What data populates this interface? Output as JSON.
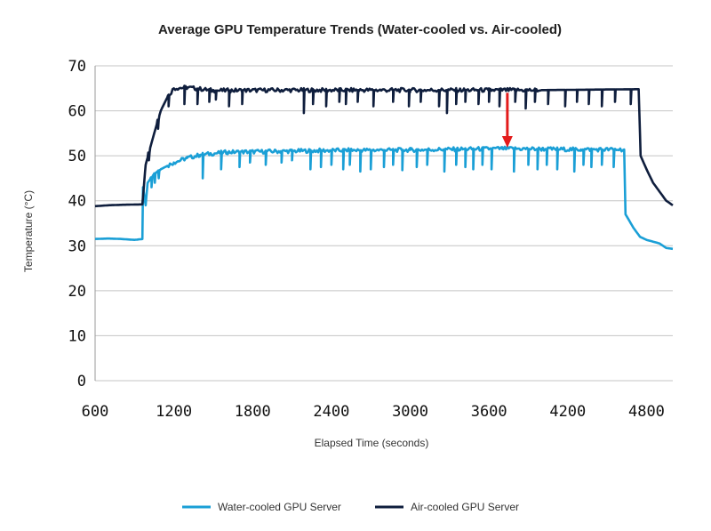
{
  "chart_data": {
    "type": "line",
    "title": "Average GPU Temperature Trends (Water-cooled vs. Air-cooled)",
    "xlabel": "Elapsed Time (seconds)",
    "ylabel": "Temperature (°C)",
    "xlim": [
      600,
      5000
    ],
    "ylim": [
      0,
      70
    ],
    "x_ticks": [
      600,
      1200,
      1800,
      2400,
      3000,
      3600,
      4200,
      4800
    ],
    "y_ticks": [
      0,
      10,
      20,
      30,
      40,
      50,
      60,
      70
    ],
    "grid": true,
    "legend_position": "bottom",
    "annotation": {
      "type": "arrow",
      "color": "#e31b1b",
      "x": 3740,
      "y_from": 64,
      "y_to": 52
    },
    "series": [
      {
        "name": "Water-cooled GPU Server",
        "color": "#1a9fd6",
        "baseline": [
          [
            600,
            31.5
          ],
          [
            700,
            31.6
          ],
          [
            800,
            31.5
          ],
          [
            900,
            31.3
          ],
          [
            960,
            31.5
          ],
          [
            965,
            43
          ],
          [
            985,
            39
          ],
          [
            1000,
            44
          ],
          [
            1050,
            46
          ],
          [
            1100,
            47
          ],
          [
            1200,
            48.5
          ],
          [
            1300,
            49.5
          ],
          [
            1400,
            50.2
          ],
          [
            1600,
            50.8
          ],
          [
            2000,
            51
          ],
          [
            2400,
            51.2
          ],
          [
            3000,
            51.3
          ],
          [
            3700,
            51.6
          ],
          [
            4000,
            51.5
          ],
          [
            4300,
            51.4
          ],
          [
            4630,
            51.4
          ],
          [
            4640,
            37
          ],
          [
            4700,
            34
          ],
          [
            4750,
            32
          ],
          [
            4800,
            31.3
          ],
          [
            4900,
            30.5
          ],
          [
            4950,
            29.5
          ],
          [
            5000,
            29.3
          ]
        ],
        "dips": [
          [
            1030,
            43
          ],
          [
            1055,
            44
          ],
          [
            1085,
            45
          ],
          [
            1420,
            45
          ],
          [
            1560,
            47
          ],
          [
            1700,
            47.5
          ],
          [
            1780,
            48.5
          ],
          [
            1900,
            48
          ],
          [
            2020,
            48.5
          ],
          [
            2100,
            49
          ],
          [
            2240,
            47
          ],
          [
            2320,
            47.5
          ],
          [
            2400,
            48
          ],
          [
            2490,
            47
          ],
          [
            2540,
            48
          ],
          [
            2620,
            46.5
          ],
          [
            2700,
            47
          ],
          [
            2800,
            47.5
          ],
          [
            2870,
            48
          ],
          [
            2940,
            46.8
          ],
          [
            3050,
            47.5
          ],
          [
            3130,
            48
          ],
          [
            3260,
            46.5
          ],
          [
            3350,
            48
          ],
          [
            3420,
            47.5
          ],
          [
            3480,
            47
          ],
          [
            3550,
            48
          ],
          [
            3620,
            47
          ],
          [
            3790,
            46.5
          ],
          [
            3900,
            48
          ],
          [
            3970,
            47
          ],
          [
            4040,
            48
          ],
          [
            4120,
            47
          ],
          [
            4250,
            46.5
          ],
          [
            4320,
            48
          ],
          [
            4380,
            47.5
          ],
          [
            4460,
            48
          ],
          [
            4550,
            47.5
          ]
        ]
      },
      {
        "name": "Air-cooled GPU Server",
        "color": "#0f1e3d",
        "baseline": [
          [
            600,
            38.8
          ],
          [
            700,
            39
          ],
          [
            800,
            39.1
          ],
          [
            960,
            39.2
          ],
          [
            985,
            48
          ],
          [
            1050,
            55
          ],
          [
            1100,
            60
          ],
          [
            1150,
            63
          ],
          [
            1200,
            65
          ],
          [
            1300,
            65.2
          ],
          [
            1500,
            64.5
          ],
          [
            2000,
            64.6
          ],
          [
            3000,
            64.6
          ],
          [
            4000,
            64.6
          ],
          [
            4740,
            64.8
          ],
          [
            4755,
            50
          ],
          [
            4800,
            47
          ],
          [
            4850,
            44
          ],
          [
            4900,
            42
          ],
          [
            4950,
            40
          ],
          [
            5000,
            39
          ]
        ],
        "dips": [
          [
            1010,
            49
          ],
          [
            1080,
            56
          ],
          [
            1160,
            61
          ],
          [
            1280,
            61.5
          ],
          [
            1380,
            61.5
          ],
          [
            1470,
            62
          ],
          [
            1520,
            62.5
          ],
          [
            1620,
            61
          ],
          [
            1720,
            61.5
          ],
          [
            2190,
            59.5
          ],
          [
            2260,
            61.5
          ],
          [
            2360,
            61
          ],
          [
            2460,
            62
          ],
          [
            2510,
            61.5
          ],
          [
            2600,
            62
          ],
          [
            2720,
            61
          ],
          [
            2870,
            62
          ],
          [
            2990,
            61
          ],
          [
            3080,
            62
          ],
          [
            3220,
            61
          ],
          [
            3280,
            59.5
          ],
          [
            3350,
            61.5
          ],
          [
            3420,
            62
          ],
          [
            3520,
            61.5
          ],
          [
            3600,
            62
          ],
          [
            3680,
            61
          ],
          [
            3800,
            62
          ],
          [
            3880,
            60.5
          ],
          [
            3950,
            62
          ],
          [
            4050,
            61.5
          ],
          [
            4180,
            61
          ],
          [
            4270,
            62
          ],
          [
            4360,
            61.5
          ],
          [
            4460,
            61
          ],
          [
            4560,
            62
          ],
          [
            4680,
            61.5
          ]
        ]
      }
    ]
  }
}
